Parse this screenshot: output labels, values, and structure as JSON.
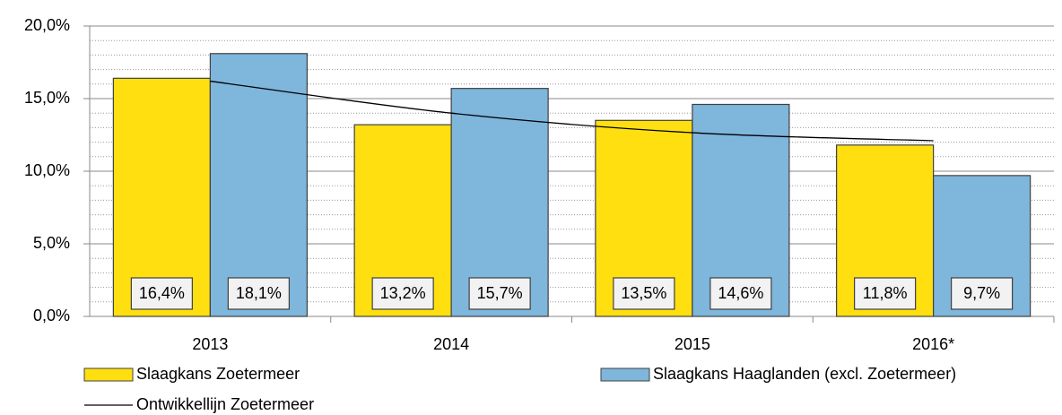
{
  "chart_data": {
    "type": "bar",
    "categories": [
      "2013",
      "2014",
      "2015",
      "2016*"
    ],
    "series": [
      {
        "name": "Slaagkans Zoetermeer",
        "color": "#FFDF10",
        "values": [
          16.4,
          13.2,
          13.5,
          11.8
        ],
        "value_labels": [
          "16,4%",
          "13,2%",
          "13,5%",
          "11,8%"
        ]
      },
      {
        "name": "Slaagkans Haaglanden (excl. Zoetermeer)",
        "color": "#7EB6DC",
        "values": [
          18.1,
          15.7,
          14.6,
          9.7
        ],
        "value_labels": [
          "18,1%",
          "15,7%",
          "14,6%",
          "9,7%"
        ]
      },
      {
        "name": "Ontwikkellijn Zoetermeer",
        "type": "line",
        "color": "#000000",
        "values": [
          16.2,
          14.0,
          12.65,
          12.1
        ]
      }
    ],
    "ylim": [
      0,
      20
    ],
    "yticks": [
      {
        "value": 0,
        "label": "0,0%"
      },
      {
        "value": 5,
        "label": "5,0%"
      },
      {
        "value": 10,
        "label": "10,0%"
      },
      {
        "value": 15,
        "label": "15,0%"
      },
      {
        "value": 20,
        "label": "20,0%"
      }
    ],
    "grid": true,
    "minor_grid": true,
    "legend": "bottom"
  }
}
